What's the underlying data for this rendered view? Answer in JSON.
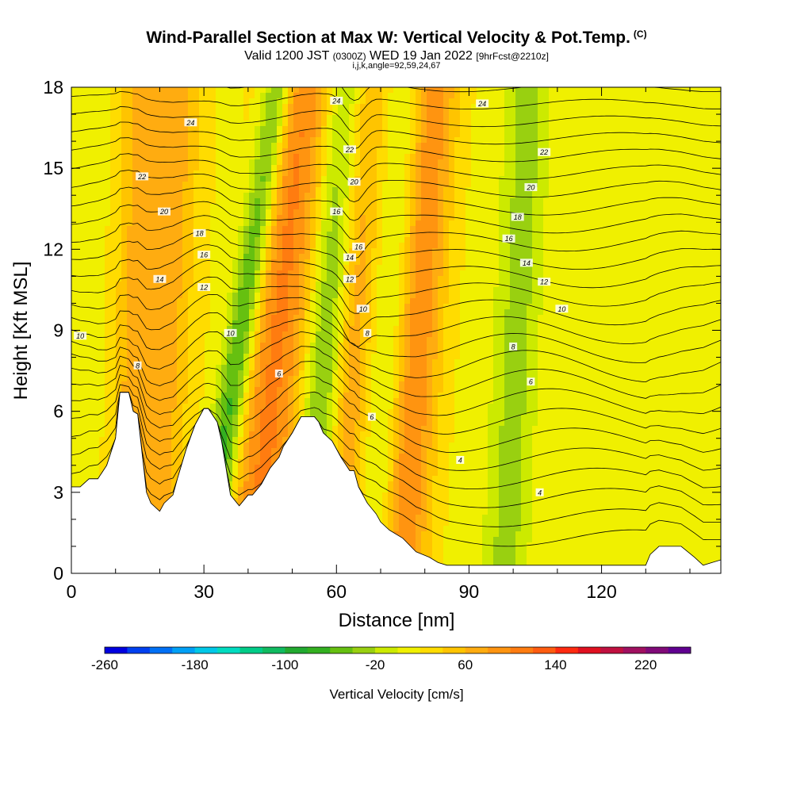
{
  "chart_data": {
    "type": "heatmap",
    "title": "Wind-Parallel Section at Max W: Vertical Velocity & Pot.Temp.",
    "title_mark": "(C)",
    "subtitle": {
      "valid": "Valid 1200 JST",
      "utc": "(0300Z)",
      "date": "WED 19 Jan 2022",
      "forecast": "[9hrFcst@2210z]"
    },
    "indices": "i,j,k,angle=92,59,24,67",
    "xlabel": "Distance [nm]",
    "ylabel": "Height [Kft MSL]",
    "xlim": [
      0,
      147
    ],
    "ylim": [
      0,
      18
    ],
    "x_ticks": [
      "0",
      "30",
      "60",
      "90",
      "120"
    ],
    "x_tick_values": [
      0,
      30,
      60,
      90,
      120
    ],
    "y_ticks": [
      "0",
      "3",
      "6",
      "9",
      "12",
      "15",
      "18"
    ],
    "y_tick_values": [
      0,
      3,
      6,
      9,
      12,
      15,
      18
    ],
    "colorbar": {
      "label": "Vertical Velocity [cm/s]",
      "tick_labels": [
        "-260",
        "-180",
        "-100",
        "-20",
        "60",
        "140",
        "220"
      ],
      "tick_values": [
        -260,
        -180,
        -100,
        -20,
        60,
        140,
        220
      ],
      "range": [
        -260,
        260
      ],
      "colors": [
        "#0000e0",
        "#0040f0",
        "#0070f5",
        "#00a0f5",
        "#00c8e8",
        "#00dcc0",
        "#00cc88",
        "#10bb60",
        "#22aa30",
        "#33b020",
        "#66c010",
        "#99d010",
        "#ccea00",
        "#f0f000",
        "#ffdc00",
        "#ffc400",
        "#ffac10",
        "#ff9410",
        "#ff7c10",
        "#ff5c10",
        "#ff2a10",
        "#e01020",
        "#c01040",
        "#a01060",
        "#800a78",
        "#600090"
      ]
    },
    "terrain_profile": {
      "x": [
        0,
        2,
        4,
        6,
        8,
        10,
        11,
        13,
        14,
        15,
        17,
        18,
        20,
        21,
        23,
        24,
        26,
        28,
        30,
        31,
        33,
        34,
        35,
        36,
        38,
        40,
        41,
        43,
        45,
        47,
        48,
        50,
        51,
        52,
        54,
        55,
        56,
        57,
        59,
        60,
        61,
        63,
        64,
        65,
        67,
        69,
        70,
        72,
        75,
        78,
        81,
        83,
        85,
        87,
        89,
        91,
        95,
        100,
        110,
        120,
        130,
        131,
        133,
        138,
        141,
        143,
        145,
        147
      ],
      "height": [
        3.2,
        3.2,
        3.5,
        3.5,
        4.0,
        5.0,
        6.7,
        6.7,
        6.0,
        5.9,
        3.0,
        2.6,
        2.3,
        2.6,
        2.9,
        3.5,
        4.6,
        5.5,
        6.1,
        6.1,
        5.6,
        4.9,
        3.9,
        2.9,
        2.5,
        2.9,
        2.9,
        3.3,
        3.9,
        4.3,
        4.7,
        5.2,
        5.5,
        5.8,
        5.8,
        5.8,
        5.6,
        5.2,
        4.9,
        4.6,
        4.3,
        3.8,
        3.8,
        3.2,
        2.6,
        2.2,
        1.9,
        1.6,
        1.3,
        0.8,
        0.6,
        0.4,
        0.3,
        0.3,
        0.3,
        0.3,
        0.3,
        0.3,
        0.3,
        0.3,
        0.3,
        0.7,
        1.0,
        1.0,
        0.6,
        0.3,
        0.4,
        0.5
      ]
    },
    "vertical_velocity_bands": [
      {
        "x_center": 13,
        "tilt_nm_per_kft": 0.15,
        "width_nm": 4,
        "w_cm_s": 40
      },
      {
        "x_center": 20,
        "tilt_nm_per_kft": 0.3,
        "width_nm": 6,
        "w_cm_s": 60
      },
      {
        "x_center": 36,
        "tilt_nm_per_kft": 0.9,
        "width_nm": 3.5,
        "w_cm_s": -100
      },
      {
        "x_center": 45,
        "tilt_nm_per_kft": 0.6,
        "width_nm": 8,
        "w_cm_s": 90
      },
      {
        "x_center": 57,
        "tilt_nm_per_kft": 0.5,
        "width_nm": 5,
        "w_cm_s": -90
      },
      {
        "x_center": 62,
        "tilt_nm_per_kft": 0.35,
        "width_nm": 5,
        "w_cm_s": 80
      },
      {
        "x_center": 72,
        "tilt_nm_per_kft": 0.45,
        "width_nm": 5,
        "w_cm_s": -70
      },
      {
        "x_center": 76,
        "tilt_nm_per_kft": 0.4,
        "width_nm": 6,
        "w_cm_s": 110
      },
      {
        "x_center": 100,
        "tilt_nm_per_kft": 0.3,
        "width_nm": 5,
        "w_cm_s": -45
      },
      {
        "x_center": 118,
        "tilt_nm_per_kft": 0.2,
        "width_nm": 10,
        "w_cm_s": 5
      }
    ],
    "pot_temp_contours": {
      "levels": [
        4,
        6,
        8,
        10,
        12,
        14,
        16,
        18,
        20,
        22,
        24
      ],
      "labeled": [
        {
          "text": "4",
          "x": 88,
          "h": 4.2
        },
        {
          "text": "4",
          "x": 106,
          "h": 3.0
        },
        {
          "text": "6",
          "x": 68,
          "h": 5.8
        },
        {
          "text": "6",
          "x": 104,
          "h": 7.1
        },
        {
          "text": "6",
          "x": 47,
          "h": 7.4
        },
        {
          "text": "8",
          "x": 15,
          "h": 7.7
        },
        {
          "text": "8",
          "x": 67,
          "h": 8.9
        },
        {
          "text": "8",
          "x": 100,
          "h": 8.4
        },
        {
          "text": "10",
          "x": 2,
          "h": 8.8
        },
        {
          "text": "10",
          "x": 36,
          "h": 8.9
        },
        {
          "text": "10",
          "x": 66,
          "h": 9.8
        },
        {
          "text": "10",
          "x": 111,
          "h": 9.8
        },
        {
          "text": "12",
          "x": 30,
          "h": 10.6
        },
        {
          "text": "12",
          "x": 63,
          "h": 10.9
        },
        {
          "text": "12",
          "x": 107,
          "h": 10.8
        },
        {
          "text": "14",
          "x": 20,
          "h": 10.9
        },
        {
          "text": "14",
          "x": 63,
          "h": 11.7
        },
        {
          "text": "14",
          "x": 103,
          "h": 11.5
        },
        {
          "text": "16",
          "x": 30,
          "h": 11.8
        },
        {
          "text": "16",
          "x": 60,
          "h": 13.4
        },
        {
          "text": "16",
          "x": 65,
          "h": 12.1
        },
        {
          "text": "16",
          "x": 99,
          "h": 12.4
        },
        {
          "text": "18",
          "x": 29,
          "h": 12.6
        },
        {
          "text": "18",
          "x": 101,
          "h": 13.2
        },
        {
          "text": "20",
          "x": 21,
          "h": 13.4
        },
        {
          "text": "20",
          "x": 64,
          "h": 14.5
        },
        {
          "text": "20",
          "x": 104,
          "h": 14.3
        },
        {
          "text": "22",
          "x": 16,
          "h": 14.7
        },
        {
          "text": "22",
          "x": 63,
          "h": 15.7
        },
        {
          "text": "22",
          "x": 107,
          "h": 15.6
        },
        {
          "text": "24",
          "x": 27,
          "h": 16.7
        },
        {
          "text": "24",
          "x": 60,
          "h": 17.5
        },
        {
          "text": "24",
          "x": 93,
          "h": 17.4
        }
      ]
    },
    "grid": false,
    "legend": "colorbar-bottom"
  }
}
